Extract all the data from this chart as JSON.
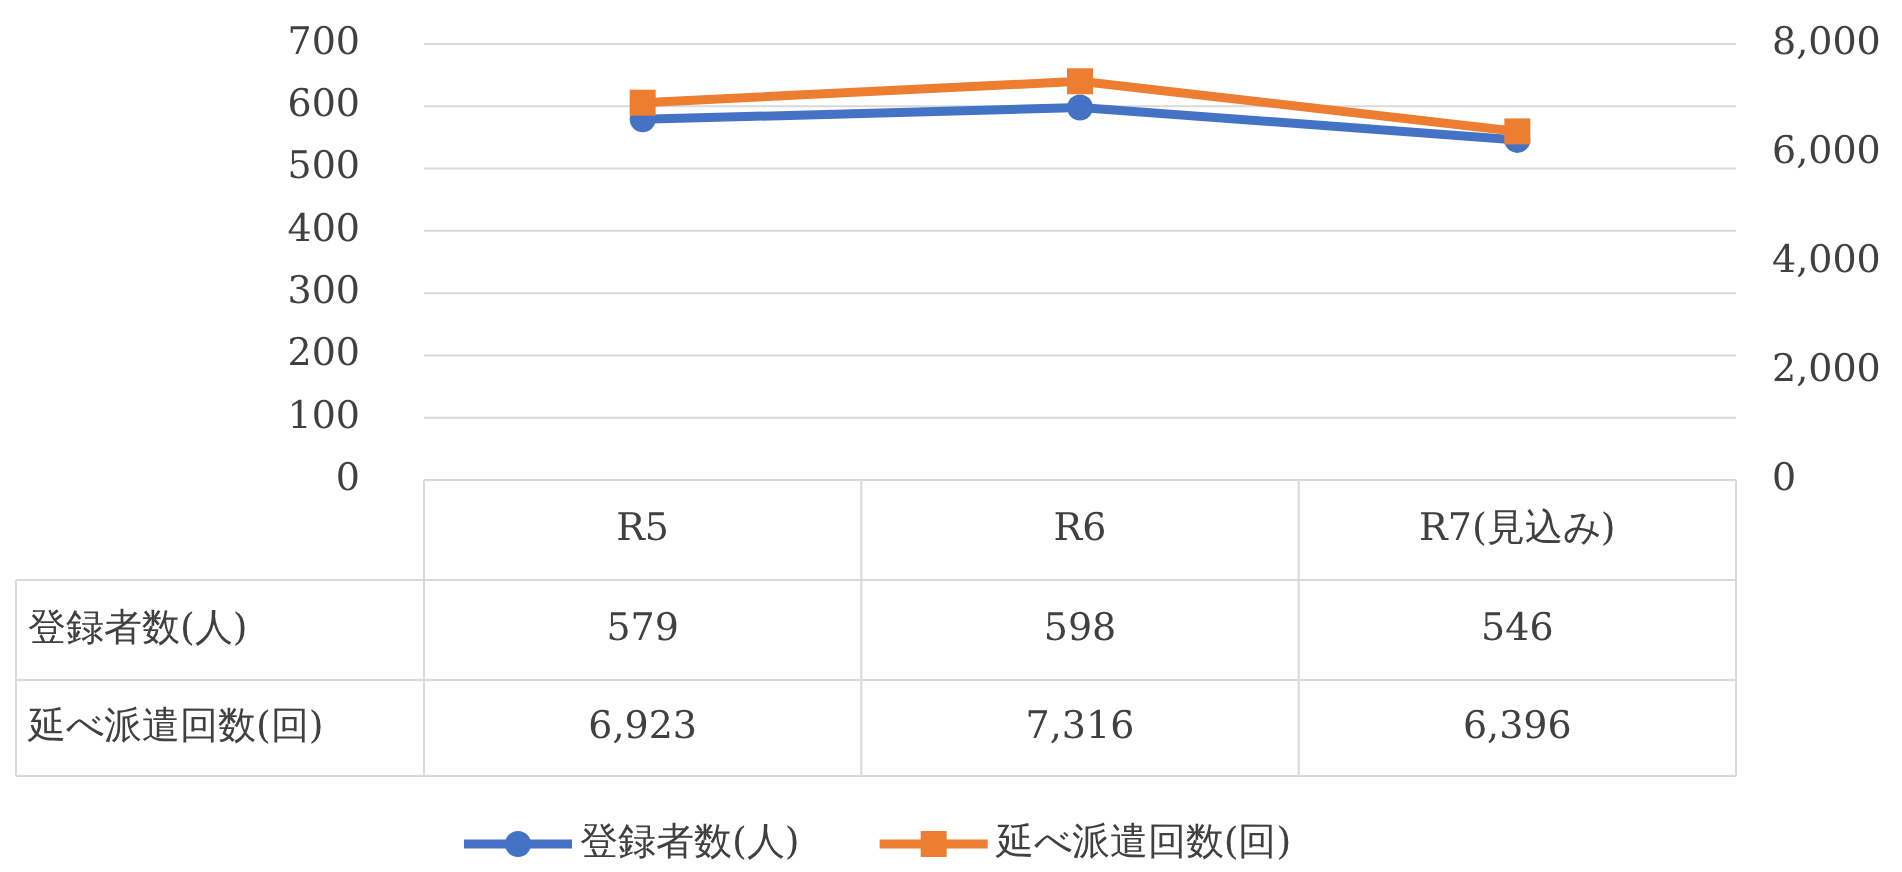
{
  "chart_data": {
    "type": "line",
    "categories": [
      "R5",
      "R6",
      "R7(見込み)"
    ],
    "series": [
      {
        "name": "登録者数(人)",
        "color": "#4472c4",
        "marker": "circle",
        "values": [
          579,
          598,
          546
        ],
        "value_labels": [
          "579",
          "598",
          "546"
        ]
      },
      {
        "name": "延べ派遣回数(回)",
        "color": "#ed7d31",
        "marker": "square",
        "axis": "y2",
        "values": [
          6923,
          7316,
          6396
        ],
        "value_labels": [
          "6,923",
          "7,316",
          "6,396"
        ]
      }
    ],
    "ylim": [
      0,
      700
    ],
    "yticks": [
      0,
      100,
      200,
      300,
      400,
      500,
      600,
      700
    ],
    "y2lim": [
      0,
      8000
    ],
    "y2ticks": [
      0,
      {
        "value": 2000,
        "label": "2,000"
      },
      {
        "value": 4000,
        "label": "4,000"
      },
      {
        "value": 6000,
        "label": "6,000"
      },
      {
        "value": 8000,
        "label": "8,000"
      }
    ],
    "grid": "y",
    "legend": "bottom",
    "line_style": "solid"
  }
}
